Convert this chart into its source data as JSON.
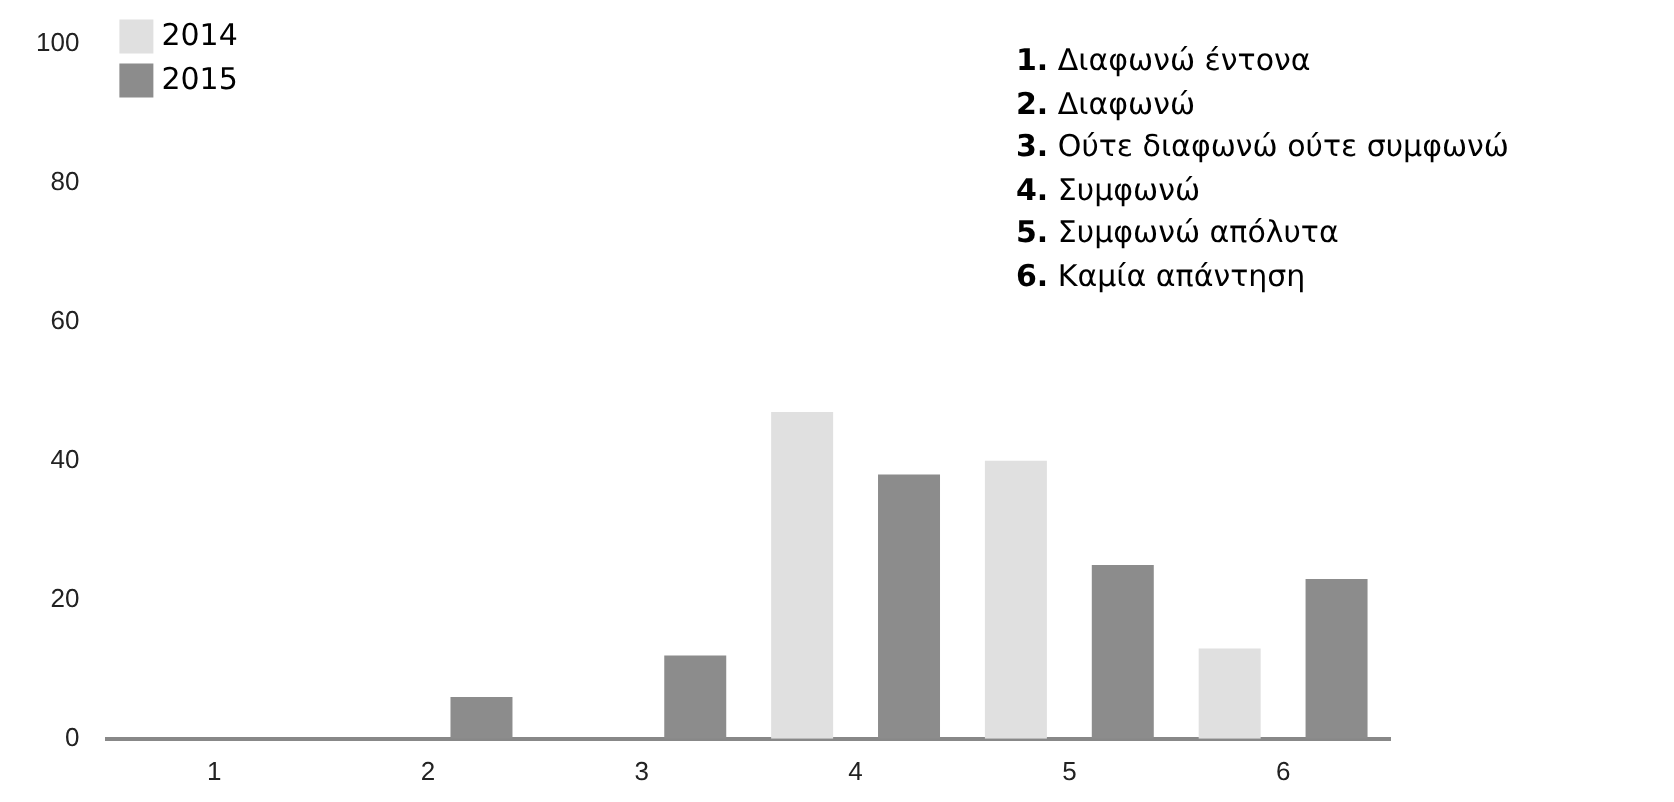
{
  "chart_data": {
    "type": "bar",
    "categories": [
      "1",
      "2",
      "3",
      "4",
      "5",
      "6"
    ],
    "series": [
      {
        "name": "2014",
        "color": "#e0e0e0",
        "values": [
          0,
          0,
          0,
          47,
          40,
          13
        ]
      },
      {
        "name": "2015",
        "color": "#8c8c8c",
        "values": [
          0,
          6,
          12,
          38,
          25,
          23
        ]
      }
    ],
    "ylim": [
      0,
      100
    ],
    "yticks": [
      0,
      20,
      40,
      60,
      80,
      100
    ],
    "grid": false,
    "legend": "top left",
    "annotations": [
      "1. Διαφωνώ έντονα",
      "2. Διαφωνώ",
      "3. Ούτε διαφωνώ ούτε συμφωνώ",
      "4. Συμφωνώ",
      "5. Συμφωνώ απόλυτα",
      "6. Καμία απάντηση"
    ]
  }
}
